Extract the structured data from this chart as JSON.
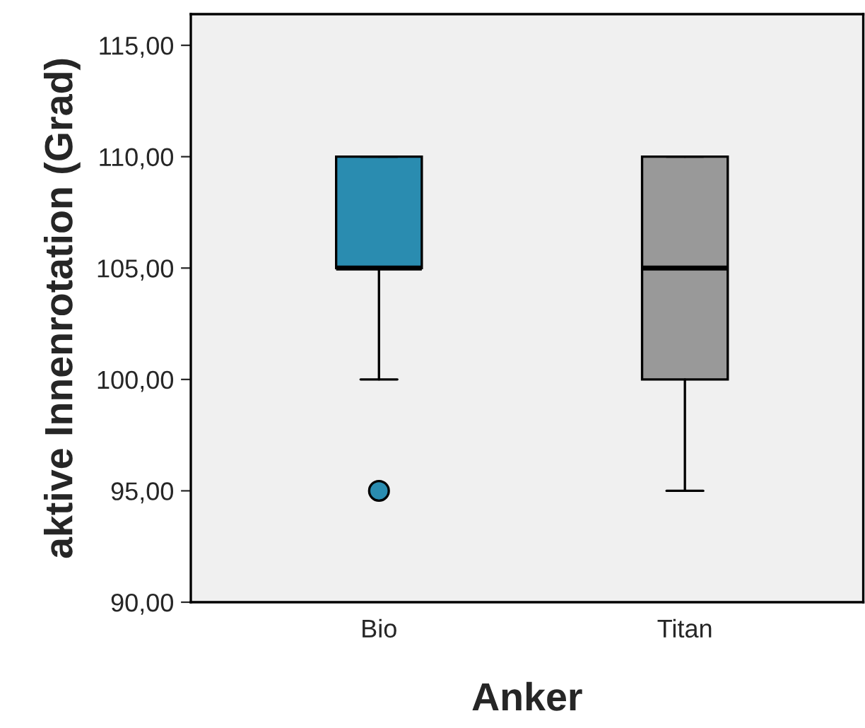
{
  "chart_data": {
    "type": "box",
    "xlabel": "Anker",
    "ylabel": "aktive Innenrotation (Grad)",
    "categories": [
      "Bio",
      "Titan"
    ],
    "colors": [
      "#2a8cb0",
      "#999999"
    ],
    "boxes": [
      {
        "low": 100,
        "q1": 105,
        "median": 105,
        "q3": 110,
        "high": 110,
        "outliers": [
          95
        ]
      },
      {
        "low": 95,
        "q1": 100,
        "median": 105,
        "q3": 110,
        "high": 110
      }
    ],
    "ylim": [
      90,
      116.4
    ],
    "yticks": [
      {
        "value": 90,
        "label": "90,00"
      },
      {
        "value": 95,
        "label": "95,00"
      },
      {
        "value": 100,
        "label": "100,00"
      },
      {
        "value": 105,
        "label": "105,00"
      },
      {
        "value": 110,
        "label": "110,00"
      },
      {
        "value": 115,
        "label": "115,00"
      }
    ],
    "grid": false
  }
}
